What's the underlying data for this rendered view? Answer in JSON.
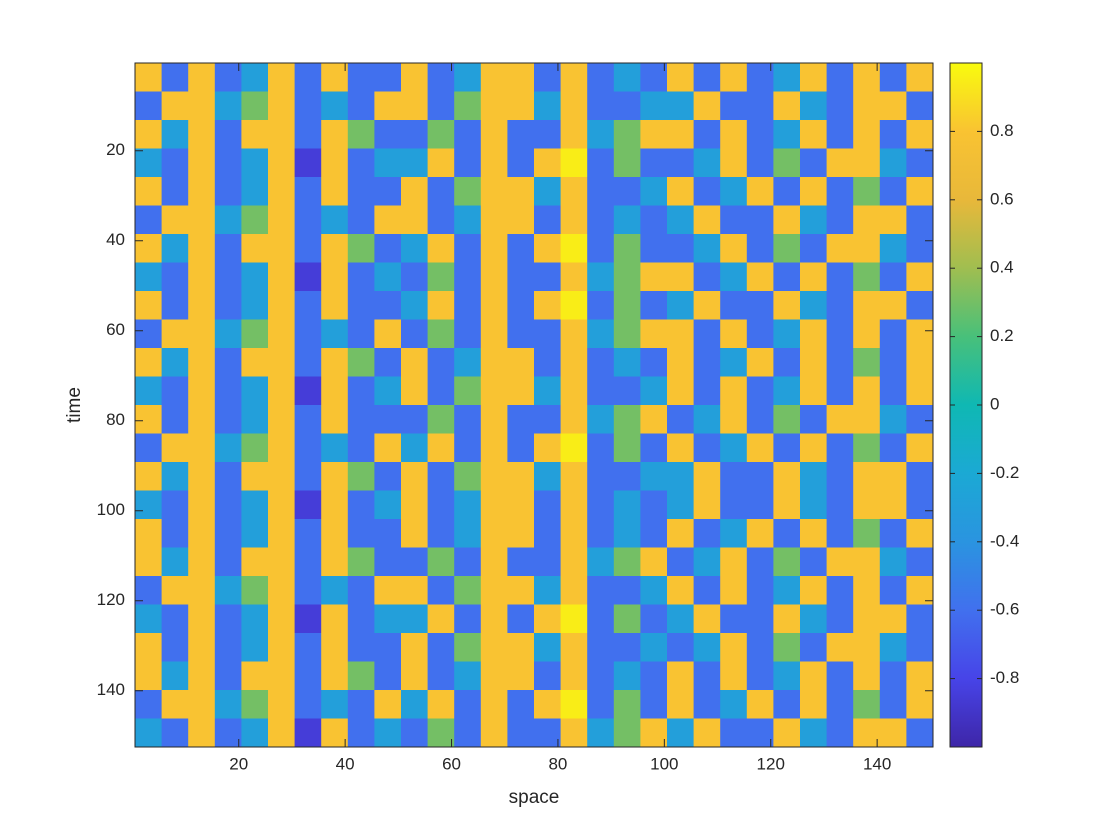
{
  "chart_data": {
    "type": "heatmap",
    "xlabel": "space",
    "ylabel": "time",
    "xlim": [
      0.5,
      150.5
    ],
    "ylim": [
      0.5,
      152.5
    ],
    "xticks": [
      20,
      40,
      60,
      80,
      100,
      120,
      140
    ],
    "yticks": [
      20,
      40,
      60,
      80,
      100,
      120,
      140
    ],
    "clim": [
      -1,
      1
    ],
    "cticks": [
      -0.8,
      -0.6,
      -0.4,
      -0.2,
      0,
      0.2,
      0.4,
      0.6,
      0.8
    ],
    "colormap": "parula",
    "z": [
      [
        0.8,
        -0.6,
        0.8,
        -0.6,
        -0.3,
        0.8,
        -0.6,
        0.8,
        -0.6,
        -0.6,
        0.8,
        -0.6,
        -0.3,
        0.8,
        0.8,
        -0.6,
        0.8,
        -0.6,
        -0.3,
        -0.6,
        0.8,
        -0.6,
        0.8,
        -0.6,
        -0.3,
        0.8,
        -0.6,
        0.8,
        -0.6,
        0.8
      ],
      [
        -0.6,
        0.8,
        0.8,
        -0.3,
        0.3,
        0.8,
        -0.6,
        -0.3,
        -0.6,
        0.8,
        0.8,
        -0.6,
        0.3,
        0.8,
        0.8,
        -0.3,
        0.8,
        -0.6,
        -0.6,
        -0.3,
        -0.3,
        0.8,
        -0.6,
        -0.6,
        0.8,
        -0.3,
        -0.6,
        0.8,
        0.8,
        -0.6
      ],
      [
        0.8,
        -0.3,
        0.8,
        -0.6,
        0.8,
        0.8,
        -0.6,
        0.8,
        0.3,
        -0.6,
        -0.6,
        0.3,
        -0.6,
        0.8,
        -0.6,
        -0.6,
        0.8,
        -0.3,
        0.3,
        0.8,
        0.8,
        -0.6,
        0.8,
        -0.6,
        -0.3,
        0.8,
        -0.6,
        0.8,
        -0.6,
        0.8
      ],
      [
        -0.3,
        -0.6,
        0.8,
        -0.6,
        -0.3,
        0.8,
        -0.85,
        0.8,
        -0.6,
        -0.3,
        -0.3,
        0.8,
        -0.6,
        0.8,
        -0.6,
        0.8,
        0.95,
        -0.6,
        0.3,
        -0.6,
        -0.6,
        -0.3,
        0.8,
        -0.6,
        0.3,
        -0.6,
        0.8,
        0.8,
        -0.3,
        -0.6
      ],
      [
        0.8,
        -0.6,
        0.8,
        -0.6,
        -0.3,
        0.8,
        -0.6,
        0.8,
        -0.6,
        -0.6,
        0.8,
        -0.6,
        0.3,
        0.8,
        0.8,
        -0.3,
        0.8,
        -0.6,
        -0.6,
        -0.3,
        0.8,
        -0.6,
        -0.3,
        0.8,
        -0.6,
        0.8,
        -0.6,
        0.3,
        -0.6,
        0.8
      ],
      [
        -0.6,
        0.8,
        0.8,
        -0.3,
        0.3,
        0.8,
        -0.6,
        -0.3,
        -0.6,
        0.8,
        0.8,
        -0.6,
        -0.3,
        0.8,
        0.8,
        -0.6,
        0.8,
        -0.6,
        -0.3,
        -0.6,
        -0.3,
        0.8,
        -0.6,
        -0.6,
        0.8,
        -0.3,
        -0.6,
        0.8,
        0.8,
        -0.6
      ],
      [
        0.8,
        -0.3,
        0.8,
        -0.6,
        0.8,
        0.8,
        -0.6,
        0.8,
        0.3,
        -0.6,
        -0.3,
        0.8,
        -0.6,
        0.8,
        -0.6,
        0.8,
        0.95,
        -0.6,
        0.3,
        -0.6,
        -0.6,
        -0.3,
        0.8,
        -0.6,
        0.3,
        -0.6,
        0.8,
        0.8,
        -0.3,
        -0.6
      ],
      [
        -0.3,
        -0.6,
        0.8,
        -0.6,
        -0.3,
        0.8,
        -0.85,
        0.8,
        -0.6,
        -0.3,
        -0.6,
        0.3,
        -0.6,
        0.8,
        -0.6,
        -0.6,
        0.8,
        -0.3,
        0.3,
        0.8,
        0.8,
        -0.6,
        -0.3,
        0.8,
        -0.6,
        0.8,
        -0.6,
        0.3,
        -0.6,
        0.8
      ],
      [
        0.8,
        -0.6,
        0.8,
        -0.6,
        -0.3,
        0.8,
        -0.6,
        0.8,
        -0.6,
        -0.6,
        -0.3,
        0.8,
        -0.6,
        0.8,
        -0.6,
        0.8,
        0.95,
        -0.6,
        0.3,
        -0.6,
        -0.3,
        0.8,
        -0.6,
        -0.6,
        0.8,
        -0.3,
        -0.6,
        0.8,
        0.8,
        -0.6
      ],
      [
        -0.6,
        0.8,
        0.8,
        -0.3,
        0.3,
        0.8,
        -0.6,
        -0.3,
        -0.6,
        0.8,
        -0.6,
        0.3,
        -0.6,
        0.8,
        -0.6,
        -0.6,
        0.8,
        -0.3,
        0.3,
        0.8,
        0.8,
        -0.6,
        0.8,
        -0.6,
        -0.3,
        0.8,
        -0.6,
        0.8,
        -0.6,
        0.8
      ],
      [
        0.8,
        -0.3,
        0.8,
        -0.6,
        0.8,
        0.8,
        -0.6,
        0.8,
        0.3,
        -0.6,
        0.8,
        -0.6,
        -0.3,
        0.8,
        0.8,
        -0.6,
        0.8,
        -0.6,
        -0.3,
        -0.6,
        0.8,
        -0.6,
        -0.3,
        0.8,
        -0.6,
        0.8,
        -0.6,
        0.3,
        -0.6,
        0.8
      ],
      [
        -0.3,
        -0.6,
        0.8,
        -0.6,
        -0.3,
        0.8,
        -0.85,
        0.8,
        -0.6,
        -0.3,
        0.8,
        -0.6,
        0.3,
        0.8,
        0.8,
        -0.3,
        0.8,
        -0.6,
        -0.6,
        -0.3,
        0.8,
        -0.6,
        0.8,
        -0.6,
        -0.3,
        0.8,
        -0.6,
        0.8,
        -0.6,
        0.8
      ],
      [
        0.8,
        -0.6,
        0.8,
        -0.6,
        -0.3,
        0.8,
        -0.6,
        0.8,
        -0.6,
        -0.6,
        -0.6,
        0.3,
        -0.6,
        0.8,
        -0.6,
        -0.6,
        0.8,
        -0.3,
        0.3,
        0.8,
        -0.6,
        -0.3,
        0.8,
        -0.6,
        0.3,
        -0.6,
        0.8,
        0.8,
        -0.3,
        -0.6
      ],
      [
        -0.6,
        0.8,
        0.8,
        -0.3,
        0.3,
        0.8,
        -0.6,
        -0.3,
        -0.6,
        0.8,
        -0.3,
        0.8,
        -0.6,
        0.8,
        -0.6,
        0.8,
        0.95,
        -0.6,
        0.3,
        -0.6,
        0.8,
        -0.6,
        -0.3,
        0.8,
        -0.6,
        0.8,
        -0.6,
        0.3,
        -0.6,
        0.8
      ],
      [
        0.8,
        -0.3,
        0.8,
        -0.6,
        0.8,
        0.8,
        -0.6,
        0.8,
        0.3,
        -0.6,
        0.8,
        -0.6,
        0.3,
        0.8,
        0.8,
        -0.3,
        0.8,
        -0.6,
        -0.6,
        -0.3,
        -0.3,
        0.8,
        -0.6,
        -0.6,
        0.8,
        -0.3,
        -0.6,
        0.8,
        0.8,
        -0.6
      ],
      [
        -0.3,
        -0.6,
        0.8,
        -0.6,
        -0.3,
        0.8,
        -0.85,
        0.8,
        -0.6,
        -0.3,
        0.8,
        -0.6,
        -0.3,
        0.8,
        0.8,
        -0.6,
        0.8,
        -0.6,
        -0.3,
        -0.6,
        -0.3,
        0.8,
        -0.6,
        -0.6,
        0.8,
        -0.3,
        -0.6,
        0.8,
        0.8,
        -0.6
      ],
      [
        0.8,
        -0.6,
        0.8,
        -0.6,
        -0.3,
        0.8,
        -0.6,
        0.8,
        -0.6,
        -0.6,
        0.8,
        -0.6,
        -0.3,
        0.8,
        0.8,
        -0.6,
        0.8,
        -0.6,
        -0.3,
        -0.6,
        0.8,
        -0.6,
        -0.3,
        0.8,
        -0.6,
        0.8,
        -0.6,
        0.3,
        -0.6,
        0.8
      ],
      [
        0.8,
        -0.3,
        0.8,
        -0.6,
        0.8,
        0.8,
        -0.6,
        0.8,
        0.3,
        -0.6,
        -0.6,
        0.3,
        -0.6,
        0.8,
        -0.6,
        -0.6,
        0.8,
        -0.3,
        0.3,
        0.8,
        -0.6,
        -0.3,
        0.8,
        -0.6,
        0.3,
        -0.6,
        0.8,
        0.8,
        -0.3,
        -0.6
      ],
      [
        -0.6,
        0.8,
        0.8,
        -0.3,
        0.3,
        0.8,
        -0.6,
        -0.3,
        -0.6,
        0.8,
        0.8,
        -0.6,
        0.3,
        0.8,
        0.8,
        -0.3,
        0.8,
        -0.6,
        -0.6,
        -0.3,
        0.8,
        -0.6,
        0.8,
        -0.6,
        -0.3,
        0.8,
        -0.6,
        0.8,
        -0.6,
        0.8
      ],
      [
        -0.3,
        -0.6,
        0.8,
        -0.6,
        -0.3,
        0.8,
        -0.85,
        0.8,
        -0.6,
        -0.3,
        -0.3,
        0.8,
        -0.6,
        0.8,
        -0.6,
        0.8,
        0.95,
        -0.6,
        0.3,
        -0.6,
        -0.3,
        0.8,
        -0.6,
        -0.6,
        0.8,
        -0.3,
        -0.6,
        0.8,
        0.8,
        -0.6
      ],
      [
        0.8,
        -0.6,
        0.8,
        -0.6,
        -0.3,
        0.8,
        -0.6,
        0.8,
        -0.6,
        -0.6,
        0.8,
        -0.6,
        0.3,
        0.8,
        0.8,
        -0.3,
        0.8,
        -0.6,
        -0.6,
        -0.3,
        -0.6,
        -0.3,
        0.8,
        -0.6,
        0.3,
        -0.6,
        0.8,
        0.8,
        -0.3,
        -0.6
      ],
      [
        0.8,
        -0.3,
        0.8,
        -0.6,
        0.8,
        0.8,
        -0.6,
        0.8,
        0.3,
        -0.6,
        0.8,
        -0.6,
        -0.3,
        0.8,
        0.8,
        -0.6,
        0.8,
        -0.6,
        -0.3,
        -0.6,
        0.8,
        -0.6,
        0.8,
        -0.6,
        -0.3,
        0.8,
        -0.6,
        0.8,
        -0.6,
        0.8
      ],
      [
        -0.6,
        0.8,
        0.8,
        -0.3,
        0.3,
        0.8,
        -0.6,
        -0.3,
        -0.6,
        0.8,
        -0.3,
        0.8,
        -0.6,
        0.8,
        -0.6,
        0.8,
        0.95,
        -0.6,
        0.3,
        -0.6,
        0.8,
        -0.6,
        -0.3,
        0.8,
        -0.6,
        0.8,
        -0.6,
        0.3,
        -0.6,
        0.8
      ],
      [
        -0.3,
        -0.6,
        0.8,
        -0.6,
        -0.3,
        0.8,
        -0.85,
        0.8,
        -0.6,
        -0.3,
        -0.6,
        0.3,
        -0.6,
        0.8,
        -0.6,
        -0.6,
        0.8,
        -0.3,
        0.3,
        0.8,
        -0.3,
        0.8,
        -0.6,
        -0.6,
        0.8,
        -0.3,
        -0.6,
        0.8,
        0.8,
        -0.6
      ]
    ]
  }
}
